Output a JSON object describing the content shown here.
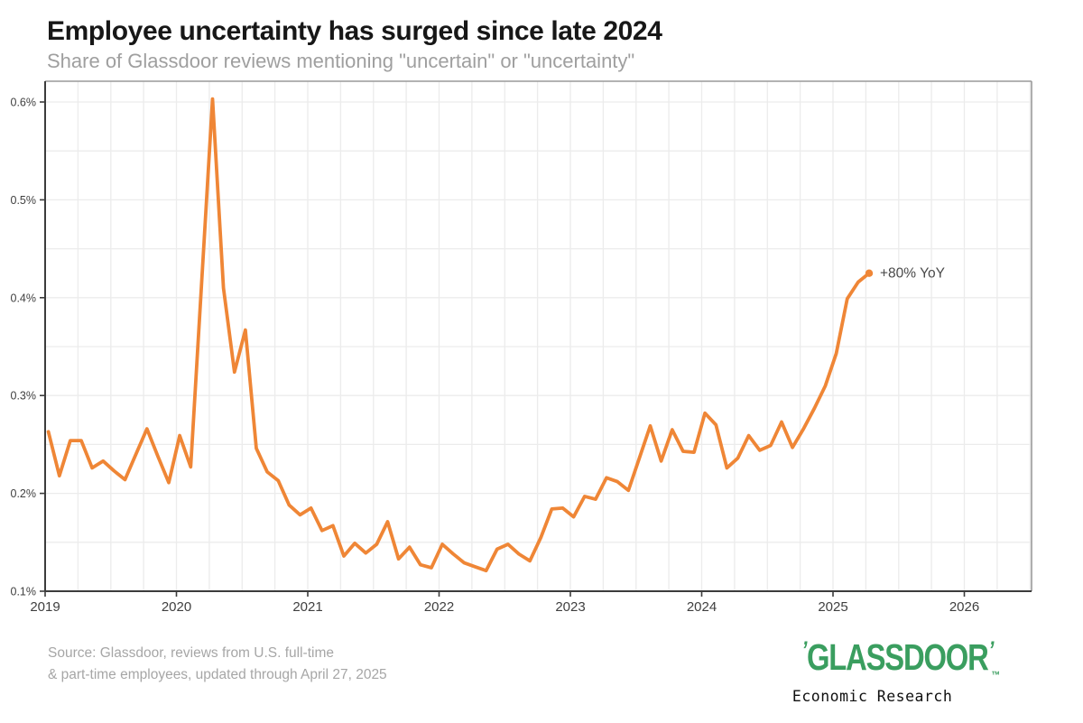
{
  "header": {
    "title": "Employee uncertainty has surged since late 2024",
    "subtitle": "Share of Glassdoor reviews mentioning \"uncertain\" or \"uncertainty\""
  },
  "chart_data": {
    "type": "line",
    "title": "Employee uncertainty has surged since late 2024",
    "unit": "% of Glassdoor reviews",
    "x_start": "2019-01",
    "x_interval": "monthly",
    "x_ticks": [
      "2019",
      "2020",
      "2021",
      "2022",
      "2023",
      "2024",
      "2025",
      "2026"
    ],
    "y_ticks": [
      "0.1%",
      "0.2%",
      "0.3%",
      "0.4%",
      "0.5%",
      "0.6%"
    ],
    "ylim": [
      0.1,
      0.62
    ],
    "xlim_years": [
      2019,
      2026.5
    ],
    "grid": {
      "horizontal_step_pct": 0.05,
      "vertical_step_years": 0.25
    },
    "legend": "none",
    "annotation": {
      "text": "+80% YoY"
    },
    "series": [
      {
        "name": "Share of reviews mentioning \"uncertain\" or \"uncertainty\"",
        "color": "#EF8636",
        "values": [
          0.263,
          0.218,
          0.254,
          0.254,
          0.226,
          0.233,
          0.223,
          0.214,
          0.24,
          0.266,
          0.238,
          0.211,
          0.259,
          0.227,
          0.415,
          0.603,
          0.41,
          0.324,
          0.367,
          0.246,
          0.222,
          0.213,
          0.188,
          0.178,
          0.185,
          0.162,
          0.167,
          0.136,
          0.149,
          0.139,
          0.148,
          0.171,
          0.133,
          0.145,
          0.127,
          0.124,
          0.148,
          0.138,
          0.129,
          0.125,
          0.121,
          0.143,
          0.148,
          0.138,
          0.131,
          0.155,
          0.184,
          0.185,
          0.176,
          0.197,
          0.194,
          0.216,
          0.212,
          0.203,
          0.236,
          0.269,
          0.233,
          0.265,
          0.243,
          0.242,
          0.282,
          0.27,
          0.226,
          0.236,
          0.259,
          0.244,
          0.249,
          0.273,
          0.247,
          0.266,
          0.287,
          0.31,
          0.343,
          0.399,
          0.416,
          0.425
        ]
      }
    ]
  },
  "footer": {
    "source_line1": "Source: Glassdoor, reviews from U.S. full-time",
    "source_line2": "& part-time employees, updated through April 27, 2025",
    "logo": {
      "open_quote": "’",
      "wordmark": "GLASSDOOR",
      "close_quote": "’",
      "tm": "™",
      "tagline": "Economic Research",
      "green": "#3A9E5F"
    }
  }
}
